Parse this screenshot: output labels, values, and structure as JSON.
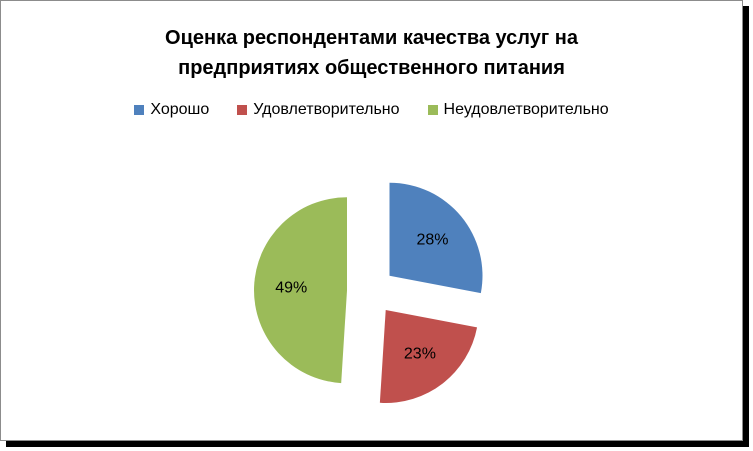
{
  "chart_data": {
    "type": "pie",
    "title_lines": [
      "Оценка респондентами качества услуг на",
      "предприятиях общественного питания"
    ],
    "legend_placement": "top",
    "exploded": true,
    "slices": [
      {
        "name": "Хорошо",
        "value": 28,
        "label": "28%",
        "color": "#4f81bd"
      },
      {
        "name": "Удовлетворительно",
        "value": 23,
        "label": "23%",
        "color": "#c0504d"
      },
      {
        "name": "Неудовлетворительно",
        "value": 49,
        "label": "49%",
        "color": "#9bbb59"
      }
    ]
  }
}
